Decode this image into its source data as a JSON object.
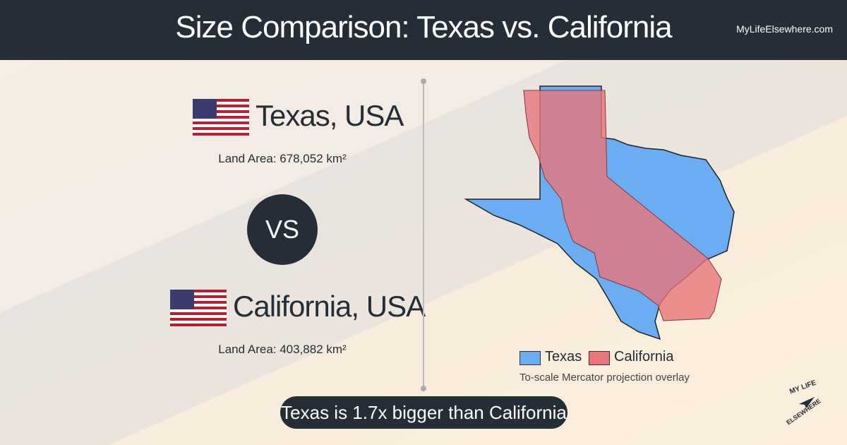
{
  "header": {
    "title": "Size Comparison: Texas vs. California",
    "site": "MyLifeElsewhere.com"
  },
  "left": {
    "first": {
      "name": "Texas, USA",
      "area": "Land Area: 678,052 km²"
    },
    "vs": "VS",
    "second": {
      "name": "California, USA",
      "area": "Land Area: 403,882 km²"
    }
  },
  "map": {
    "legend": [
      {
        "name": "Texas",
        "color": "#6aadf2"
      },
      {
        "name": "California",
        "color": "#e8767a"
      }
    ],
    "note": "To-scale Mercator projection overlay"
  },
  "summary": "Texas is 1.7x bigger than California",
  "logo": {
    "top": "MY LIFE",
    "bottom": "ELSEWHERE"
  }
}
